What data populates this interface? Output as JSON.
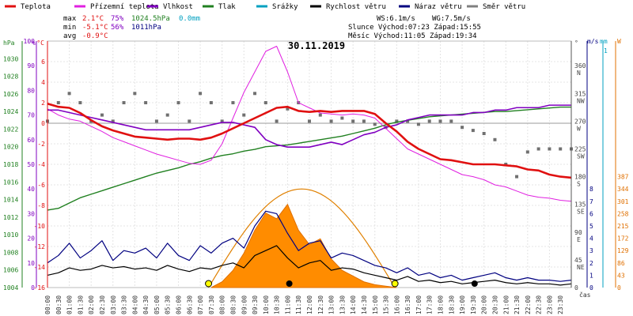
{
  "chart_data": {
    "type": "line",
    "title": "30.11.2019",
    "legend": [
      {
        "name": "Teplota",
        "color": "#e01010"
      },
      {
        "name": "Přízemní teplota",
        "color": "#e020e0"
      },
      {
        "name": "Vlhkost",
        "color": "#8000c0"
      },
      {
        "name": "Tlak",
        "color": "#208020"
      },
      {
        "name": "Srážky",
        "color": "#00a0c0"
      },
      {
        "name": "Rychlost větru",
        "color": "#000000"
      },
      {
        "name": "Náraz větru",
        "color": "#000080"
      },
      {
        "name": "Směr větru",
        "color": "#808080"
      }
    ],
    "stats": {
      "max_label": "max",
      "max_temp": "2.1°C",
      "max_hum": "75%",
      "max_press": "1024.5hPa",
      "max_rain": "0.0mm",
      "min_label": "min",
      "min_temp": "-5.1°C",
      "min_hum": "56%",
      "min_press": "1011hPa",
      "avg_label": "avg",
      "avg_temp": "-0.9°C",
      "ws": "WS:6.1m/s",
      "wg": "WG:7.5m/s",
      "sun": "Slunce Východ:07:23  Západ:15:55",
      "moon": "Měsíc  Východ:11:05  Západ:19:34"
    },
    "axes": {
      "hpa_title": "hPa",
      "pct_title": "%",
      "c_title": "°C",
      "hpa_ticks": [
        "1004",
        "1006",
        "1008",
        "1010",
        "1012",
        "1014",
        "1016",
        "1018",
        "1020",
        "1022",
        "1024",
        "1026",
        "1028",
        "1030"
      ],
      "pct_ticks": [
        "0",
        "10",
        "20",
        "30",
        "40",
        "50",
        "60",
        "70",
        "80",
        "90",
        "100"
      ],
      "c_ticks": [
        "-16",
        "-14",
        "-12",
        "-10",
        "-8",
        "-6",
        "-4",
        "-2",
        "0",
        "2",
        "4",
        "6"
      ],
      "dir_title": "°",
      "dir_ticks": [
        {
          "deg": "360",
          "name": "N"
        },
        {
          "deg": "315",
          "name": "NW"
        },
        {
          "deg": "270",
          "name": "W"
        },
        {
          "deg": "225",
          "name": "SW"
        },
        {
          "deg": "180",
          "name": "S"
        },
        {
          "deg": "135",
          "name": "SE"
        },
        {
          "deg": "90",
          "name": "E"
        },
        {
          "deg": "45",
          "name": "NE"
        },
        {
          "deg": "0",
          "name": ""
        }
      ],
      "ms_title": "m/s",
      "ms_ticks": [
        "0",
        "1",
        "2",
        "3",
        "4",
        "5",
        "6",
        "7",
        "8"
      ],
      "mm_title": "mm",
      "mm_top": "1",
      "wm_title": "W",
      "wm_ticks": [
        "0",
        "43",
        "86",
        "129",
        "172",
        "215",
        "258",
        "301",
        "344",
        "387"
      ],
      "x_label": "čas",
      "x_ticks": [
        "00:00",
        "00:30",
        "01:00",
        "01:30",
        "02:00",
        "02:30",
        "03:00",
        "03:30",
        "04:00",
        "04:30",
        "05:00",
        "05:30",
        "06:00",
        "06:30",
        "07:00",
        "07:30",
        "08:00",
        "08:30",
        "09:00",
        "09:30",
        "10:00",
        "10:30",
        "11:00",
        "11:30",
        "12:00",
        "12:30",
        "13:00",
        "13:30",
        "14:00",
        "14:30",
        "15:00",
        "15:30",
        "16:00",
        "16:30",
        "17:00",
        "17:30",
        "18:00",
        "18:30",
        "19:00",
        "19:30",
        "20:00",
        "20:30",
        "21:00",
        "21:30",
        "22:00",
        "22:30",
        "23:00",
        "23:30"
      ]
    },
    "series": [
      {
        "name": "Teplota",
        "unit": "°C",
        "x": [
          0,
          0.5,
          1,
          1.5,
          2,
          2.5,
          3,
          3.5,
          4,
          4.5,
          5,
          5.5,
          6,
          6.5,
          7,
          7.5,
          8,
          8.5,
          9,
          9.5,
          10,
          10.5,
          11,
          11.5,
          12,
          12.5,
          13,
          13.5,
          14,
          14.5,
          15,
          15.5,
          16,
          16.5,
          17,
          17.5,
          18,
          18.5,
          19,
          19.5,
          20,
          20.5,
          21,
          21.5,
          22,
          22.5,
          23,
          23.5,
          24
        ],
        "values": [
          1.9,
          1.6,
          1.5,
          1.0,
          0.3,
          -0.3,
          -0.7,
          -1.0,
          -1.3,
          -1.4,
          -1.5,
          -1.6,
          -1.5,
          -1.5,
          -1.6,
          -1.4,
          -1.0,
          -0.5,
          0.0,
          0.5,
          1.0,
          1.5,
          1.6,
          1.2,
          1.1,
          1.2,
          1.1,
          1.2,
          1.2,
          1.2,
          0.9,
          0.0,
          -0.8,
          -1.8,
          -2.5,
          -3.0,
          -3.5,
          -3.6,
          -3.8,
          -4.0,
          -4.0,
          -4.0,
          -4.1,
          -4.2,
          -4.5,
          -4.6,
          -5.0,
          -5.2,
          -5.3
        ]
      },
      {
        "name": "Přízemní teplota",
        "unit": "°C",
        "x": [
          0,
          0.5,
          1,
          1.5,
          2,
          2.5,
          3,
          3.5,
          4,
          4.5,
          5,
          5.5,
          6,
          6.5,
          7,
          7.5,
          8,
          8.5,
          9,
          9.5,
          10,
          10.5,
          11,
          11.5,
          12,
          12.5,
          13,
          13.5,
          14,
          14.5,
          15,
          15.5,
          16,
          16.5,
          17,
          17.5,
          18,
          18.5,
          19,
          19.5,
          20,
          20.5,
          21,
          21.5,
          22,
          22.5,
          23,
          23.5,
          24
        ],
        "values": [
          1.4,
          0.8,
          0.4,
          0.2,
          -0.3,
          -0.8,
          -1.4,
          -1.8,
          -2.2,
          -2.6,
          -3.0,
          -3.3,
          -3.6,
          -3.9,
          -4.0,
          -3.6,
          -2.0,
          0.5,
          3.0,
          5.0,
          7.0,
          7.5,
          5.0,
          2.0,
          1.5,
          1.0,
          0.9,
          0.8,
          0.9,
          0.8,
          0.5,
          -0.5,
          -1.5,
          -2.5,
          -3.0,
          -3.5,
          -4.0,
          -4.5,
          -5.0,
          -5.2,
          -5.5,
          -6.0,
          -6.2,
          -6.6,
          -7.0,
          -7.2,
          -7.3,
          -7.5,
          -7.6
        ]
      },
      {
        "name": "Vlhkost",
        "unit": "%",
        "x": [
          0,
          0.5,
          1,
          1.5,
          2,
          2.5,
          3,
          3.5,
          4,
          4.5,
          5,
          5.5,
          6,
          6.5,
          7,
          7.5,
          8,
          8.5,
          9,
          9.5,
          10,
          10.5,
          11,
          11.5,
          12,
          12.5,
          13,
          13.5,
          14,
          14.5,
          15,
          15.5,
          16,
          16.5,
          17,
          17.5,
          18,
          18.5,
          19,
          19.5,
          20,
          20.5,
          21,
          21.5,
          22,
          22.5,
          23,
          23.5,
          24
        ],
        "values": [
          72,
          72,
          71,
          70,
          69,
          68,
          67,
          66,
          65,
          64,
          64,
          64,
          64,
          64,
          65,
          66,
          67,
          67,
          66,
          65,
          60,
          58,
          57,
          57,
          57,
          58,
          59,
          58,
          60,
          62,
          63,
          65,
          66,
          68,
          69,
          70,
          70,
          70,
          70,
          71,
          71,
          72,
          72,
          73,
          73,
          73,
          74,
          74,
          74
        ]
      },
      {
        "name": "Tlak",
        "unit": "hPa",
        "x": [
          0,
          0.5,
          1,
          1.5,
          2,
          2.5,
          3,
          3.5,
          4,
          4.5,
          5,
          5.5,
          6,
          6.5,
          7,
          7.5,
          8,
          8.5,
          9,
          9.5,
          10,
          10.5,
          11,
          11.5,
          12,
          12.5,
          13,
          13.5,
          14,
          14.5,
          15,
          15.5,
          16,
          16.5,
          17,
          17.5,
          18,
          18.5,
          19,
          19.5,
          20,
          20.5,
          21,
          21.5,
          22,
          22.5,
          23,
          23.5,
          24
        ],
        "values": [
          1012.8,
          1013.0,
          1013.6,
          1014.2,
          1014.6,
          1015.0,
          1015.4,
          1015.8,
          1016.2,
          1016.6,
          1017.0,
          1017.3,
          1017.6,
          1018.0,
          1018.3,
          1018.7,
          1019.0,
          1019.2,
          1019.5,
          1019.7,
          1020.0,
          1020.1,
          1020.2,
          1020.4,
          1020.6,
          1020.8,
          1021.0,
          1021.2,
          1021.5,
          1021.8,
          1022.1,
          1022.5,
          1022.8,
          1023.0,
          1023.2,
          1023.4,
          1023.5,
          1023.6,
          1023.7,
          1023.8,
          1023.9,
          1024.0,
          1024.0,
          1024.1,
          1024.2,
          1024.3,
          1024.4,
          1024.5,
          1024.5
        ]
      },
      {
        "name": "Rychlost větru",
        "unit": "m/s",
        "x": [
          0,
          0.5,
          1,
          1.5,
          2,
          2.5,
          3,
          3.5,
          4,
          4.5,
          5,
          5.5,
          6,
          6.5,
          7,
          7.5,
          8,
          8.5,
          9,
          9.5,
          10,
          10.5,
          11,
          11.5,
          12,
          12.5,
          13,
          13.5,
          14,
          14.5,
          15,
          15.5,
          16,
          16.5,
          17,
          17.5,
          18,
          18.5,
          19,
          19.5,
          20,
          20.5,
          21,
          21.5,
          22,
          22.5,
          23,
          23.5,
          24
        ],
        "values": [
          1.0,
          1.2,
          1.6,
          1.4,
          1.5,
          1.8,
          1.6,
          1.7,
          1.5,
          1.6,
          1.4,
          1.8,
          1.5,
          1.3,
          1.6,
          1.5,
          1.8,
          2.0,
          1.6,
          2.6,
          3.0,
          3.4,
          2.4,
          1.6,
          2.0,
          2.2,
          1.4,
          1.6,
          1.5,
          1.2,
          1.0,
          0.8,
          0.6,
          0.9,
          0.5,
          0.6,
          0.4,
          0.5,
          0.3,
          0.4,
          0.5,
          0.6,
          0.4,
          0.3,
          0.4,
          0.3,
          0.3,
          0.2,
          0.3
        ]
      },
      {
        "name": "Náraz větru",
        "unit": "m/s",
        "x": [
          0,
          0.5,
          1,
          1.5,
          2,
          2.5,
          3,
          3.5,
          4,
          4.5,
          5,
          5.5,
          6,
          6.5,
          7,
          7.5,
          8,
          8.5,
          9,
          9.5,
          10,
          10.5,
          11,
          11.5,
          12,
          12.5,
          13,
          13.5,
          14,
          14.5,
          15,
          15.5,
          16,
          16.5,
          17,
          17.5,
          18,
          18.5,
          19,
          19.5,
          20,
          20.5,
          21,
          21.5,
          22,
          22.5,
          23,
          23.5,
          24
        ],
        "values": [
          2.0,
          2.6,
          3.6,
          2.4,
          3.0,
          3.8,
          2.2,
          3.0,
          2.8,
          3.2,
          2.4,
          3.6,
          2.6,
          2.2,
          3.4,
          2.8,
          3.6,
          4.0,
          3.2,
          5.0,
          6.2,
          6.0,
          4.4,
          3.0,
          3.6,
          3.8,
          2.4,
          2.8,
          2.6,
          2.2,
          1.8,
          1.6,
          1.2,
          1.6,
          1.0,
          1.2,
          0.8,
          1.0,
          0.6,
          0.8,
          1.0,
          1.2,
          0.8,
          0.6,
          0.8,
          0.6,
          0.6,
          0.5,
          0.6
        ]
      },
      {
        "name": "Směr větru",
        "unit": "°",
        "x": [
          0,
          0.5,
          1,
          1.5,
          2,
          2.5,
          3,
          3.5,
          4,
          4.5,
          5,
          5.5,
          6,
          6.5,
          7,
          7.5,
          8,
          8.5,
          9,
          9.5,
          10,
          10.5,
          11,
          11.5,
          12,
          12.5,
          13,
          13.5,
          14,
          14.5,
          15,
          15.5,
          16,
          16.5,
          17,
          17.5,
          18,
          18.5,
          19,
          19.5,
          20,
          20.5,
          21,
          21.5,
          22,
          22.5,
          23,
          23.5,
          24
        ],
        "values": [
          270,
          300,
          315,
          300,
          270,
          280,
          270,
          300,
          315,
          300,
          270,
          280,
          300,
          270,
          315,
          300,
          270,
          300,
          280,
          315,
          300,
          270,
          290,
          300,
          270,
          280,
          270,
          275,
          270,
          270,
          265,
          260,
          270,
          270,
          265,
          270,
          270,
          270,
          260,
          255,
          250,
          240,
          200,
          180,
          220,
          225,
          225,
          225,
          225
        ]
      },
      {
        "name": "Sluneční záření",
        "unit": "W/m²",
        "x": [
          7.5,
          8,
          8.5,
          9,
          9.5,
          10,
          10.5,
          11,
          11.5,
          12,
          12.5,
          13,
          13.5,
          14,
          14.5,
          15,
          15.5,
          16
        ],
        "values": [
          0,
          20,
          60,
          120,
          200,
          260,
          240,
          290,
          200,
          150,
          170,
          100,
          60,
          40,
          20,
          10,
          5,
          0
        ]
      }
    ]
  }
}
